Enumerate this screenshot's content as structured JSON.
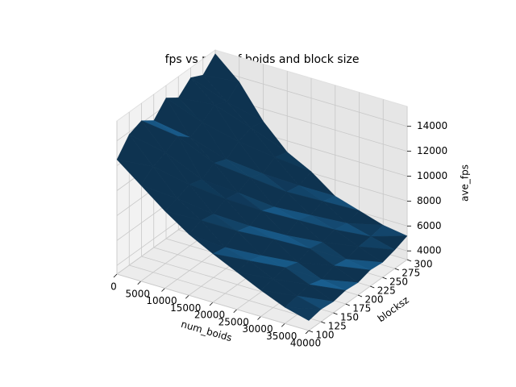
{
  "chart_data": {
    "type": "surface",
    "title": "fps vs num of boids and block size",
    "xlabel": "num_boids",
    "ylabel": "blocksz",
    "zlabel": "ave_fps",
    "x": [
      0,
      5000,
      10000,
      15000,
      20000,
      25000,
      30000,
      35000,
      40000
    ],
    "y": [
      100,
      125,
      150,
      175,
      200,
      225,
      250,
      275,
      300
    ],
    "z": [
      [
        12500,
        11000,
        9500,
        8200,
        7200,
        6300,
        5400,
        4600,
        4100
      ],
      [
        13800,
        11800,
        9800,
        8600,
        7000,
        6500,
        5600,
        4800,
        4300
      ],
      [
        14200,
        12200,
        10200,
        8400,
        7600,
        6200,
        5800,
        5000,
        4200
      ],
      [
        13500,
        12800,
        9900,
        8900,
        7300,
        6800,
        5500,
        4700,
        4400
      ],
      [
        14600,
        12000,
        10500,
        8700,
        7800,
        6400,
        5900,
        5100,
        4300
      ],
      [
        13900,
        12500,
        10100,
        9200,
        7400,
        6900,
        5700,
        4900,
        4600
      ],
      [
        14800,
        13200,
        10800,
        8800,
        7900,
        6600,
        6000,
        5200,
        4500
      ],
      [
        14300,
        12700,
        11200,
        9400,
        7700,
        7000,
        5800,
        5300,
        4800
      ],
      [
        15300,
        13600,
        11000,
        9100,
        8100,
        6700,
        6100,
        5500,
        5200
      ]
    ],
    "color": "#1f77b4",
    "xlim": [
      0,
      40000
    ],
    "ylim": [
      100,
      300
    ],
    "zlim": [
      3300,
      15600
    ],
    "xticks": [
      0,
      5000,
      10000,
      15000,
      20000,
      25000,
      30000,
      35000,
      40000
    ],
    "yticks": [
      100,
      125,
      150,
      175,
      200,
      225,
      250,
      275,
      300
    ],
    "zticks": [
      4000,
      6000,
      8000,
      10000,
      12000,
      14000
    ],
    "grid": true
  }
}
